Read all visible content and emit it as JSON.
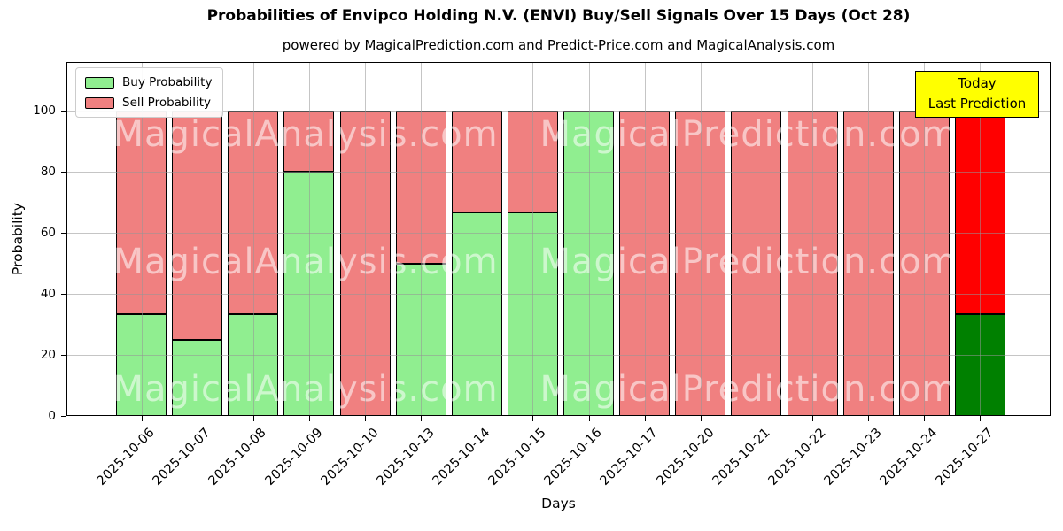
{
  "title": "Probabilities of Envipco Holding N.V. (ENVI) Buy/Sell Signals Over 15 Days (Oct 28)",
  "subtitle": "powered by MagicalPrediction.com and Predict-Price.com and MagicalAnalysis.com",
  "legend": {
    "items": [
      {
        "label": "Buy Probability",
        "color": "#90EE90"
      },
      {
        "label": "Sell Probability",
        "color": "#F08080"
      }
    ]
  },
  "annotation": {
    "lines": [
      "Today",
      "Last Prediction"
    ],
    "bg_color": "#FFFF00",
    "border_color": "#000000"
  },
  "watermarks": {
    "left_text": "MagicalAnalysis.com",
    "right_text": "MagicalPrediction.com"
  },
  "chart_data": {
    "type": "bar",
    "stacked": true,
    "title": "Probabilities of Envipco Holding N.V. (ENVI) Buy/Sell Signals Over 15 Days (Oct 28)",
    "xlabel": "Days",
    "ylabel": "Probability",
    "categories": [
      "2025-10-06",
      "2025-10-07",
      "2025-10-08",
      "2025-10-09",
      "2025-10-10",
      "2025-10-13",
      "2025-10-14",
      "2025-10-15",
      "2025-10-16",
      "2025-10-17",
      "2025-10-20",
      "2025-10-21",
      "2025-10-22",
      "2025-10-23",
      "2025-10-24",
      "2025-10-27"
    ],
    "series": [
      {
        "name": "Buy Probability",
        "color": "#90EE90",
        "values": [
          33.33,
          25,
          33.33,
          80,
          0,
          50,
          66.67,
          66.67,
          100,
          0,
          0,
          0,
          0,
          0,
          0,
          33.33
        ]
      },
      {
        "name": "Sell Probability",
        "color": "#F08080",
        "values": [
          66.67,
          75,
          66.67,
          20,
          100,
          50,
          33.33,
          33.33,
          0,
          100,
          100,
          100,
          100,
          100,
          100,
          66.67
        ]
      }
    ],
    "today_index": 15,
    "today_colors": {
      "buy": "#008000",
      "sell": "#FF0000"
    },
    "yticks": [
      0,
      20,
      40,
      60,
      80,
      100
    ],
    "ylim": [
      0,
      116
    ],
    "dashed_line_y": 110,
    "grid": true,
    "legend_position": "upper left"
  }
}
